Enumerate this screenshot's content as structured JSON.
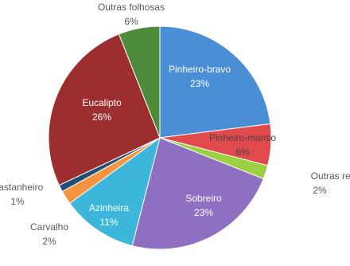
{
  "chart_data": {
    "type": "pie",
    "categories": [
      "Pinheiro-bravo",
      "Pinheiro-manso",
      "Outras resinosas",
      "Sobreiro",
      "Azinheira",
      "Carvalho",
      "Castanheiro",
      "Eucalipto",
      "Outras folhosas"
    ],
    "values": [
      23,
      6,
      2,
      23,
      11,
      2,
      1,
      26,
      6
    ],
    "value_labels": [
      "23%",
      "6%",
      "2%",
      "23%",
      "11%",
      "2%",
      "1%",
      "26%",
      "6%"
    ],
    "colors": [
      "#4a8ed6",
      "#e2494d",
      "#9bd141",
      "#8e6fc2",
      "#3cb6da",
      "#f7943f",
      "#1f4e79",
      "#9c2e30",
      "#4e8c3b"
    ]
  }
}
